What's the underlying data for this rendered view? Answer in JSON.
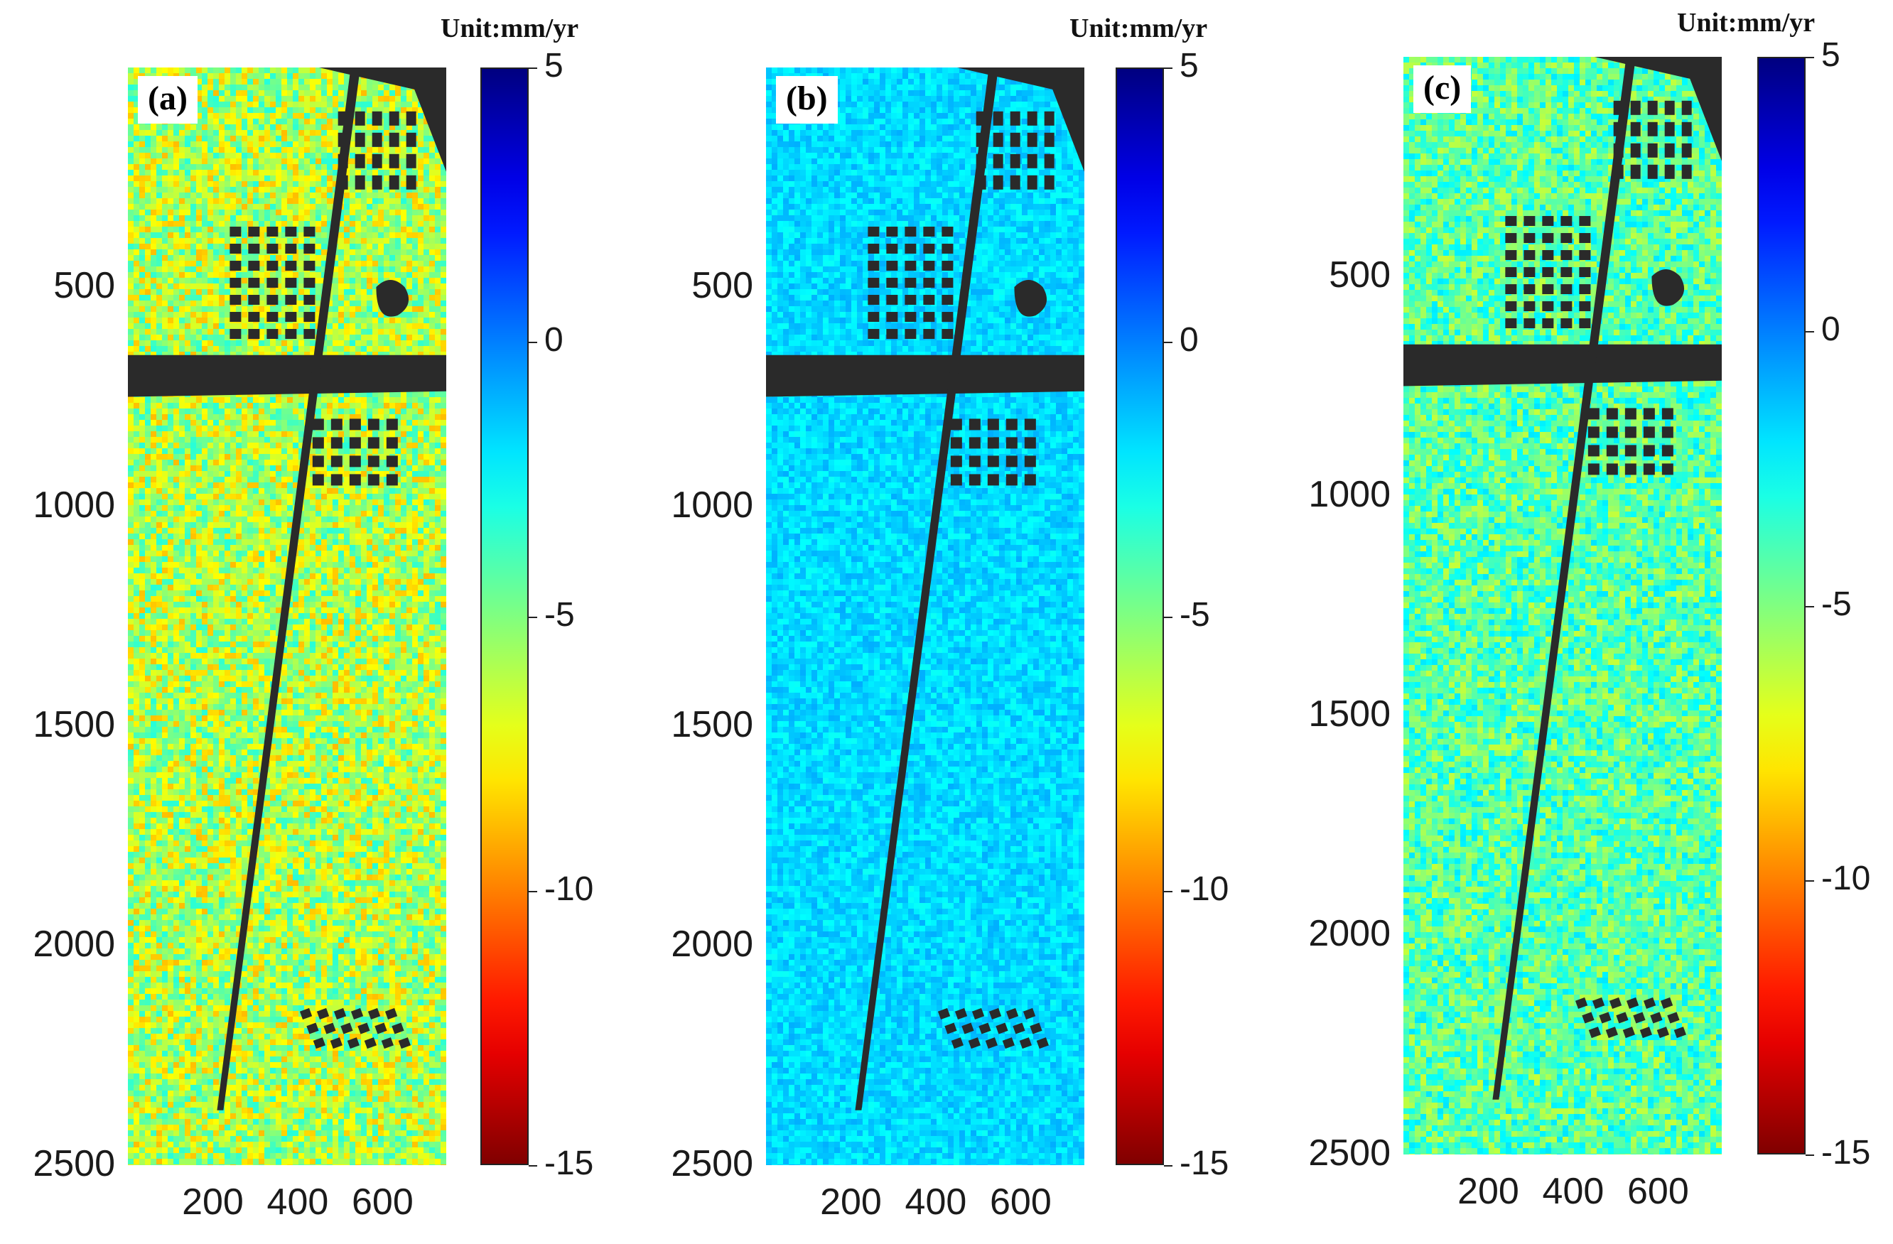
{
  "chart_data": [
    {
      "type": "heatmap",
      "panel_label": "(a)",
      "unit_label": "Unit:mm/yr",
      "y_ticks": [
        "500",
        "1000",
        "1500",
        "2000",
        "2500"
      ],
      "x_ticks": [
        "200",
        "400",
        "600"
      ],
      "colorbar_ticks": [
        "5",
        "0",
        "-5",
        "-10",
        "-15"
      ],
      "colorbar_range": [
        -15,
        5
      ],
      "ylim": [
        2500,
        0
      ],
      "x_values": [
        200,
        400,
        600
      ],
      "y_values": [
        500,
        1000,
        1500,
        2000,
        2500
      ],
      "dominant_value_mm_per_yr": -6,
      "value_spread": 2.8,
      "colorbar_colormap": "jet"
    },
    {
      "type": "heatmap",
      "panel_label": "(b)",
      "unit_label": "Unit:mm/yr",
      "y_ticks": [
        "500",
        "1000",
        "1500",
        "2000",
        "2500"
      ],
      "x_ticks": [
        "200",
        "400",
        "600"
      ],
      "colorbar_ticks": [
        "5",
        "0",
        "-5",
        "-10",
        "-15"
      ],
      "colorbar_range": [
        -15,
        5
      ],
      "ylim": [
        2500,
        0
      ],
      "x_values": [
        200,
        400,
        600
      ],
      "y_values": [
        500,
        1000,
        1500,
        2000,
        2500
      ],
      "dominant_value_mm_per_yr": -1.8,
      "value_spread": 0.9,
      "colorbar_colormap": "jet"
    },
    {
      "type": "heatmap",
      "panel_label": "(c)",
      "unit_label": "Unit:mm/yr",
      "y_ticks": [
        "500",
        "1000",
        "1500",
        "2000",
        "2500"
      ],
      "x_ticks": [
        "200",
        "400",
        "600"
      ],
      "colorbar_ticks": [
        "5",
        "0",
        "-5",
        "-10",
        "-15"
      ],
      "colorbar_range": [
        -15,
        5
      ],
      "ylim": [
        2500,
        0
      ],
      "x_values": [
        200,
        400,
        600
      ],
      "y_values": [
        500,
        1000,
        1500,
        2000,
        2500
      ],
      "dominant_value_mm_per_yr": -4.2,
      "value_spread": 2.2,
      "colorbar_colormap": "jet"
    }
  ],
  "colors": {
    "background_mask": "#2a2a2a",
    "frame": "#222222"
  }
}
